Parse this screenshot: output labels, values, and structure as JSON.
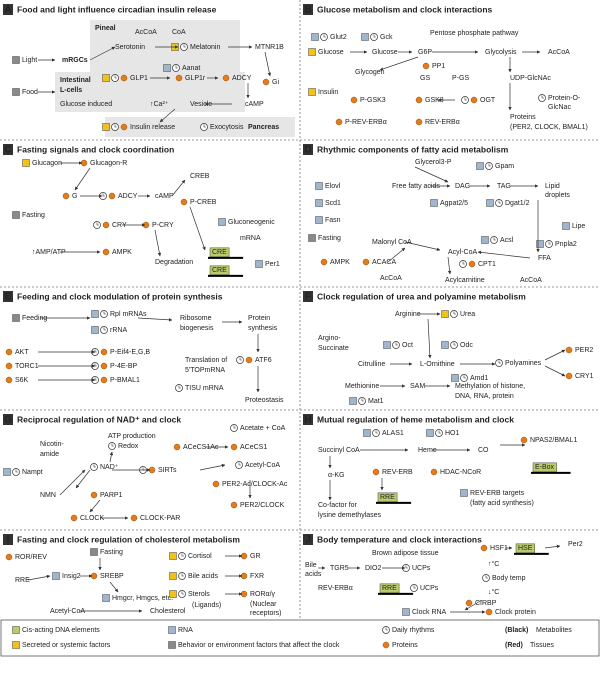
{
  "panels": [
    {
      "letter": "A",
      "title": "Food and light influence circadian insulin release",
      "labels": [
        "Light",
        "mRGCs",
        "Pineal",
        "AcCoA",
        "CoA",
        "Serotonin",
        "Melatonin",
        "Aanat",
        "MTNR1B",
        "Gi",
        "Food",
        "Intestinal",
        "L-cells",
        "GLP1",
        "GLP1r",
        "ADCY",
        "Glucose induced",
        "↑Ca²⁺",
        "Vesicle",
        "cAMP",
        "Insulin release",
        "Exocytosis",
        "Pancreas"
      ]
    },
    {
      "letter": "B",
      "title": "Glucose metabolism and clock interactions",
      "labels": [
        "Glut2",
        "Gck",
        "Pentose phosphate pathway",
        "Glucose",
        "Glucose",
        "G6P",
        "Glycolysis",
        "AcCoA",
        "Glycogen",
        "PP1",
        "GS",
        "P-GS",
        "UDP-GlcNAc",
        "Insulin",
        "P-GSK3",
        "GSK3",
        "OGT",
        "Protein-O-",
        "GlcNac",
        "Proteins",
        "(PER2, CLOCK, BMAL1)",
        "P-REV-ERBα",
        "REV-ERBα"
      ]
    },
    {
      "letter": "C",
      "title": "Fasting signals and clock coordination",
      "labels": [
        "Glucagon",
        "Glucagon-R",
        "CREB",
        "G",
        "ADCY",
        "cAMP",
        "P-CREB",
        "Fasting",
        "CRY",
        "P-CRY",
        "Gluconeogenic",
        "mRNA",
        "↑AMP/ATP",
        "AMPK",
        "Degradation",
        "CRE",
        "CRE",
        "Per1"
      ]
    },
    {
      "letter": "D",
      "title": "Rhythmic components of fatty acid metabolism",
      "labels": [
        "Glycerol3-P",
        "Gpam",
        "Elovl",
        "Free fatty acids",
        "DAG",
        "TAG",
        "Lipid",
        "droplets",
        "Scd1",
        "Agpat2/5",
        "Dgat1/2",
        "Fasn",
        "Fasting",
        "Lipe",
        "Pnpla2",
        "Malonyl CoA",
        "Acsl",
        "FFA",
        "AMPK",
        "ACACA",
        "Acyl-CoA",
        "CPT1",
        "AcCoA",
        "Acylcarnitine",
        "AcCoA"
      ]
    },
    {
      "letter": "E",
      "title": "Feeding and clock modulation of protein synthesis",
      "labels": [
        "Feeding",
        "Rpl mRNAs",
        "rRNA",
        "Ribosome",
        "biogenesis",
        "Protein",
        "synthesis",
        "AKT",
        "TORC1",
        "S6K",
        "P-Eif4-E,G,B",
        "P-4E-BP",
        "P-BMAL1",
        "ATF6",
        "Translation of",
        "5'TOPmRNA",
        "TISU mRNA",
        "Proteostasis"
      ]
    },
    {
      "letter": "F",
      "title": "Clock regulation of urea and polyamine metabolism",
      "labels": [
        "Arginine",
        "Urea",
        "Argino-",
        "Succinate",
        "Oct",
        "Odc",
        "Citrulline",
        "L-Ornithine",
        "Polyamines",
        "PER2",
        "CRY1",
        "Amd1",
        "Methionine",
        "SAM",
        "Methylation of histone,",
        "DNA, RNA, protein",
        "Mat1"
      ]
    },
    {
      "letter": "G",
      "title": "Reciprocal regulation of NAD⁺ and clock",
      "labels": [
        "ATP production",
        "Redox",
        "Nicotin-",
        "amide",
        "Nampt",
        "NAD⁺",
        "SIRTs",
        "ACeCS1Ac",
        "ACeCS1",
        "Acetate + CoA",
        "Acetyl-CoA",
        "PER2-Ac/CLOCK-Ac",
        "PER2/CLOCK",
        "NMN",
        "PARP1",
        "CLOCK",
        "CLOCK-PAR"
      ]
    },
    {
      "letter": "H",
      "title": "Mutual regulation of heme metabolism and clock",
      "labels": [
        "ALAS1",
        "HO1",
        "Succinyl CoA",
        "Heme",
        "CO",
        "NPAS2/BMAL1",
        "α-KG",
        "REV-ERB",
        "HDAC-NCoR",
        "E-Box",
        "RRE",
        "REV-ERB targets",
        "(fatty acid synthesis)",
        "Co-factor for",
        "lysine demethylases"
      ]
    },
    {
      "letter": "I",
      "title": "Fasting and clock regulation of cholesterol metabolism",
      "labels": [
        "ROR/REV",
        "RRE",
        "Insig2",
        "Fasting",
        "SREBP",
        "Hmgcr, Hmgcs, etc.",
        "Acetyl-CoA",
        "Cholesterol",
        "Cortisol",
        "GR",
        "Bile acids",
        "FXR",
        "Sterols",
        "(Ligands)",
        "RORα/γ",
        "(Nuclear",
        "receptors)"
      ]
    },
    {
      "letter": "J",
      "title": "Body temperature and clock interactions",
      "labels": [
        "Brown adipose tissue",
        "Bile",
        "acids",
        "TGR5",
        "DIO2",
        "UCPs",
        "REV-ERBα",
        "RRE",
        "UCPs",
        "HSF1",
        "HSE",
        "Per2",
        "↑°C",
        "Body temp",
        "↓°C",
        "CIRBP",
        "Clock RNA",
        "Clock protein"
      ]
    }
  ],
  "legend": [
    "Cis-acting DNA elements",
    "RNA",
    "Daily rhythms",
    "(Black)",
    "Metabolites",
    "Secreted or systemic factors",
    "Behavior or environment factors that affect the clock",
    "Proteins",
    "(Red)",
    "Tissues"
  ]
}
